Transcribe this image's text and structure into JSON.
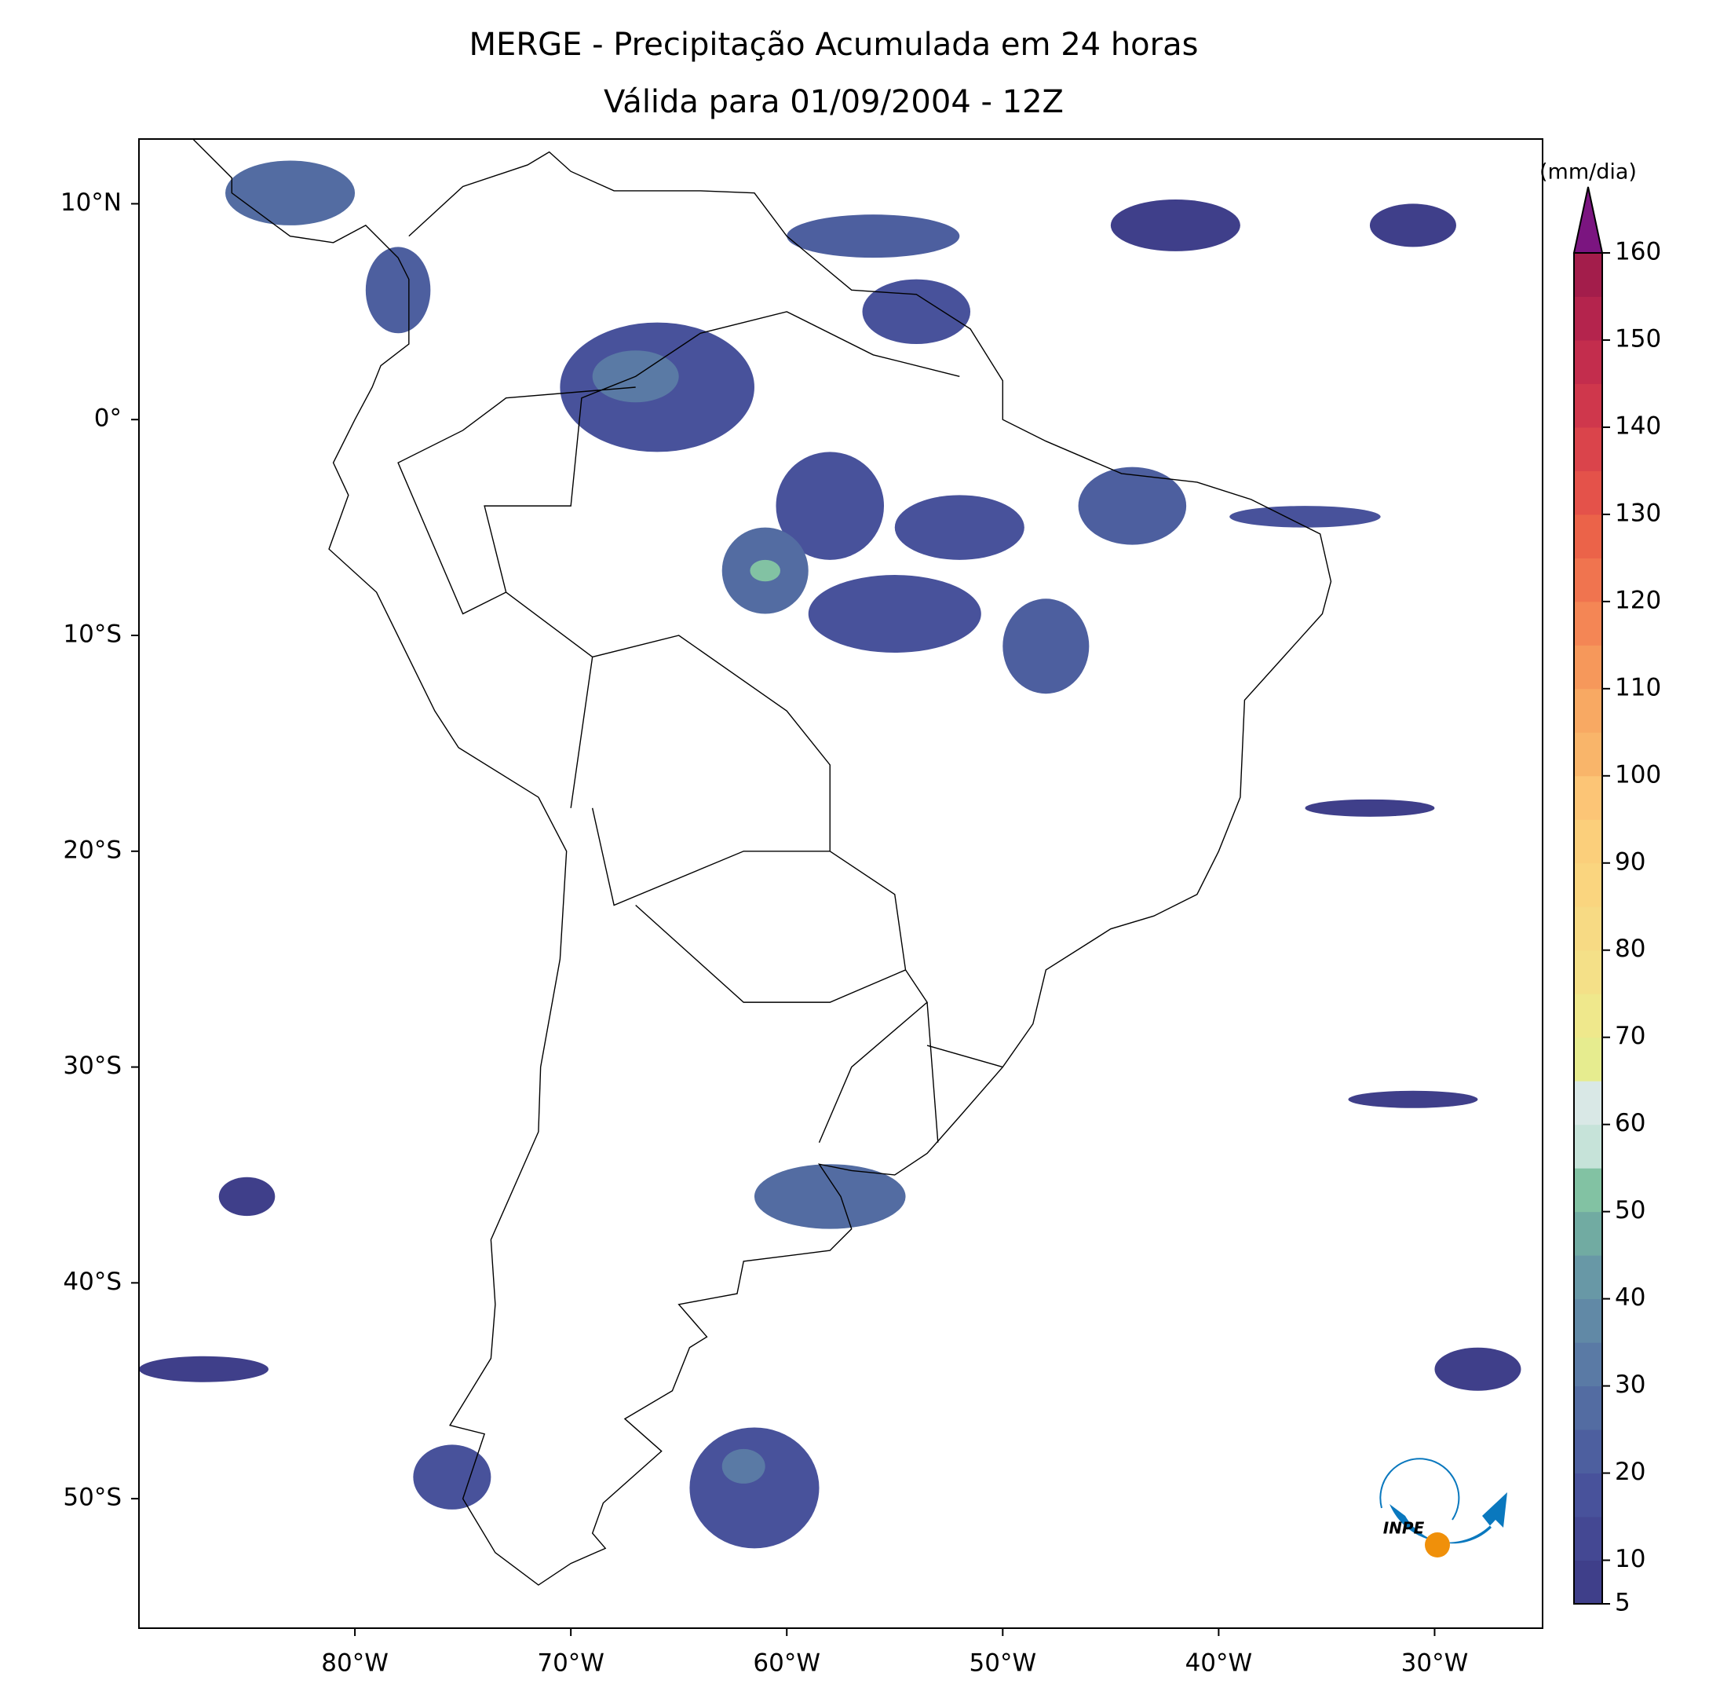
{
  "map": {
    "title": [
      "MERGE - Precipitação Acumulada em 24 horas",
      "Válida para 01/09/2004 - 12Z"
    ],
    "xlim": [
      -90,
      -25
    ],
    "ylim": [
      -56,
      13
    ],
    "xticks": [
      {
        "value": -80,
        "label": "80°W"
      },
      {
        "value": -70,
        "label": "70°W"
      },
      {
        "value": -60,
        "label": "60°W"
      },
      {
        "value": -50,
        "label": "50°W"
      },
      {
        "value": -40,
        "label": "40°W"
      },
      {
        "value": -30,
        "label": "30°W"
      }
    ],
    "yticks": [
      {
        "value": 10,
        "label": "10°N"
      },
      {
        "value": 0,
        "label": "0°"
      },
      {
        "value": -10,
        "label": "10°S"
      },
      {
        "value": -20,
        "label": "20°S"
      },
      {
        "value": -30,
        "label": "30°S"
      },
      {
        "value": -40,
        "label": "40°S"
      },
      {
        "value": -50,
        "label": "50°S"
      }
    ],
    "colorbar": {
      "unit": "(mm/dia)",
      "ticks": [
        5,
        10,
        20,
        30,
        40,
        50,
        60,
        70,
        80,
        90,
        100,
        110,
        120,
        130,
        140,
        150,
        160
      ],
      "colors": [
        "#3f3f8a",
        "#444893",
        "#48529b",
        "#4d5f9f",
        "#536ca2",
        "#5a7aa5",
        "#6189a6",
        "#6898a6",
        "#71aba2",
        "#82c2a3",
        "#c6e3d9",
        "#d9e8e6",
        "#e6ec8f",
        "#efe88c",
        "#f4e088",
        "#f7da84",
        "#fad57f",
        "#fbcf7b",
        "#fcc576",
        "#f9b56a",
        "#f8a963",
        "#f6985b",
        "#f48655",
        "#f0744f",
        "#eb6349",
        "#e4524a",
        "#da444b",
        "#cf374c",
        "#c32d4d",
        "#b4244d",
        "#a31d4b"
      ],
      "extend_color": "#7b1580"
    },
    "logo": "INPE"
  }
}
